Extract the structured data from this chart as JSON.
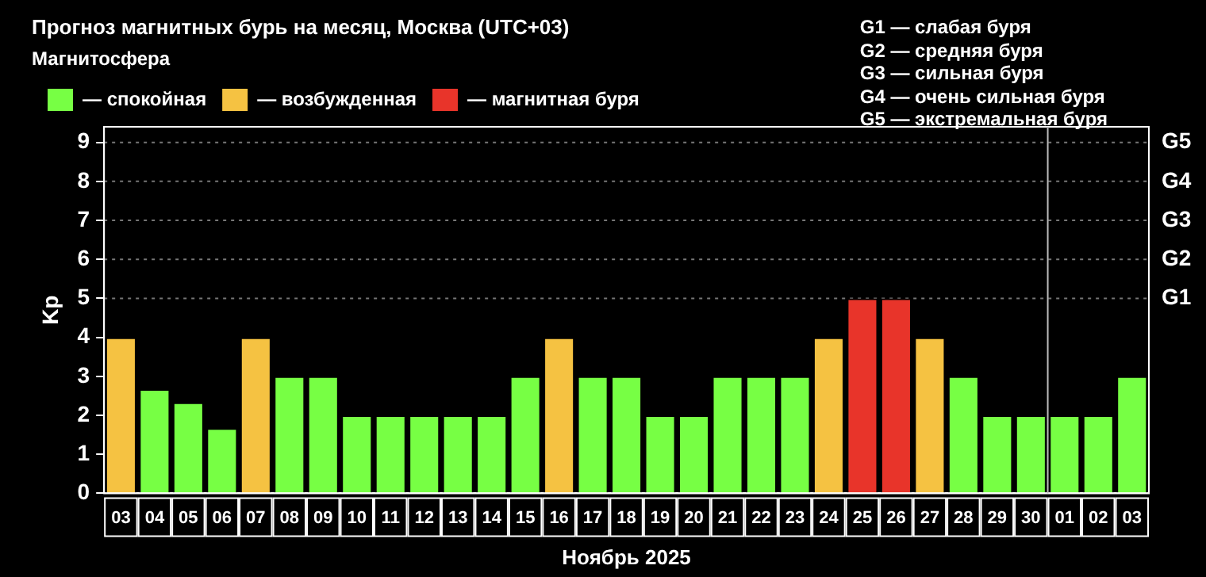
{
  "chart_data": {
    "type": "bar",
    "title": "Прогноз магнитных бурь на месяц, Москва (UTC+03)",
    "xlabel": "Ноябрь 2025",
    "ylabel": "Kp",
    "legend_title": "Магнитосфера",
    "categories": [
      "03",
      "04",
      "05",
      "06",
      "07",
      "08",
      "09",
      "10",
      "11",
      "12",
      "13",
      "14",
      "15",
      "16",
      "17",
      "18",
      "19",
      "20",
      "21",
      "22",
      "23",
      "24",
      "25",
      "26",
      "27",
      "28",
      "29",
      "30",
      "01",
      "02",
      "03"
    ],
    "series": [
      {
        "name": "— спокойная",
        "color": "#77ff44",
        "values": [
          null,
          2.67,
          2.33,
          1.67,
          null,
          3,
          3,
          2,
          2,
          2,
          2,
          2,
          3,
          null,
          3,
          3,
          2,
          2,
          3,
          3,
          3,
          null,
          null,
          null,
          null,
          3,
          2,
          2,
          2,
          2,
          3
        ]
      },
      {
        "name": "— возбужденная",
        "color": "#f5c242",
        "values": [
          4,
          null,
          null,
          null,
          4,
          null,
          null,
          null,
          null,
          null,
          null,
          null,
          null,
          4,
          null,
          null,
          null,
          null,
          null,
          null,
          null,
          4,
          null,
          null,
          4,
          null,
          null,
          null,
          null,
          null,
          null
        ]
      },
      {
        "name": "— магнитная буря",
        "color": "#e8342a",
        "values": [
          null,
          null,
          null,
          null,
          null,
          null,
          null,
          null,
          null,
          null,
          null,
          null,
          null,
          null,
          null,
          null,
          null,
          null,
          null,
          null,
          null,
          null,
          5,
          5,
          null,
          null,
          null,
          null,
          null,
          null,
          null
        ]
      }
    ],
    "stacked": true,
    "ylim": [
      0,
      9.4
    ],
    "yticks": [
      0,
      1,
      2,
      3,
      4,
      5,
      6,
      7,
      8,
      9
    ],
    "ref_lines": [
      {
        "axis": "x",
        "value": "01",
        "color": "#bbbbbb"
      },
      {
        "axis": "y",
        "value": 5,
        "label": "G1",
        "color": "#777777",
        "line_style": "dotted"
      },
      {
        "axis": "y",
        "value": 6,
        "label": "G2",
        "color": "#777777",
        "line_style": "dotted"
      },
      {
        "axis": "y",
        "value": 7,
        "label": "G3",
        "color": "#777777",
        "line_style": "dotted"
      },
      {
        "axis": "y",
        "value": 8,
        "label": "G4",
        "color": "#777777",
        "line_style": "dotted"
      },
      {
        "axis": "y",
        "value": 9,
        "label": "G5",
        "color": "#777777",
        "line_style": "dotted"
      }
    ],
    "legend": "top left",
    "annotations": [
      "G1 — слабая буря",
      "G2 — средняя буря",
      "G3 — сильная буря",
      "G4 — очень сильная буря",
      "G5 — экстремальная буря"
    ]
  }
}
